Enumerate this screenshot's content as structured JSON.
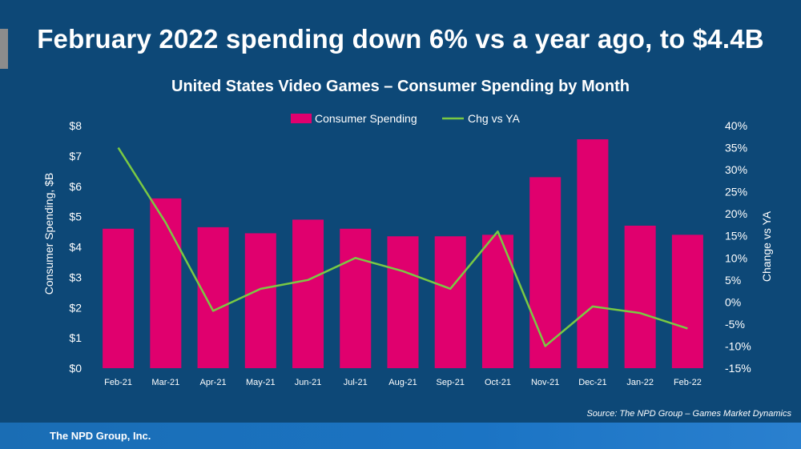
{
  "headline": "February 2022 spending down 6% vs a year ago, to $4.4B",
  "source": "Source: The NPD Group – Games Market Dynamics",
  "footer": "The NPD Group, Inc.",
  "colors": {
    "background": "#0d4877",
    "bar": "#e0006e",
    "line": "#7ac943",
    "footer": "#1b74c4"
  },
  "chart_data": {
    "type": "bar",
    "title": "United States Video Games – Consumer Spending by Month",
    "categories": [
      "Feb-21",
      "Mar-21",
      "Apr-21",
      "May-21",
      "Jun-21",
      "Jul-21",
      "Aug-21",
      "Sep-21",
      "Oct-21",
      "Nov-21",
      "Dec-21",
      "Jan-22",
      "Feb-22"
    ],
    "series": [
      {
        "name": "Consumer Spending",
        "type": "bar",
        "axis": "left",
        "values": [
          4.6,
          5.6,
          4.65,
          4.45,
          4.9,
          4.6,
          4.35,
          4.35,
          4.4,
          6.3,
          7.55,
          4.7,
          4.4
        ]
      },
      {
        "name": "Chg vs YA",
        "type": "line",
        "axis": "right",
        "values": [
          35,
          18,
          -2,
          3,
          5,
          10,
          7,
          3,
          16,
          -10,
          -1,
          -2.5,
          -6
        ]
      }
    ],
    "ylabel": "Consumer Spending, $B",
    "ylabel_right": "Change vs YA",
    "ylim": [
      0,
      8
    ],
    "ylim_right": [
      -15,
      40
    ],
    "yticks": [
      "$0",
      "$1",
      "$2",
      "$3",
      "$4",
      "$5",
      "$6",
      "$7",
      "$8"
    ],
    "yticks_right": [
      "-15%",
      "-10%",
      "-5%",
      "0%",
      "5%",
      "10%",
      "15%",
      "20%",
      "25%",
      "30%",
      "35%",
      "40%"
    ],
    "legend_position": "top-center",
    "grid": false
  }
}
